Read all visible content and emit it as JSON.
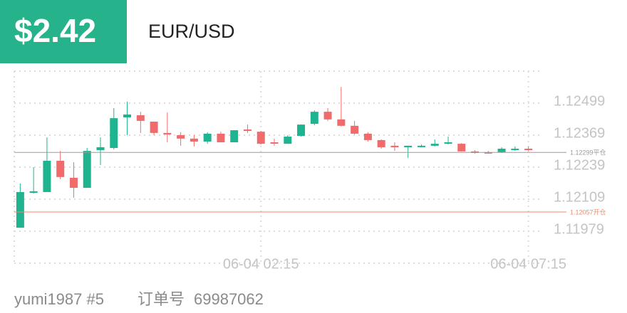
{
  "header": {
    "profit": "$2.42",
    "symbol": "EUR/USD"
  },
  "footer": {
    "user": "yumi1987 #5",
    "order_label": "订单号",
    "order_no": "69987062"
  },
  "chart_data": {
    "type": "candlestick",
    "categories": [
      null,
      null,
      null,
      null,
      null,
      null,
      null,
      null,
      null,
      null,
      null,
      null,
      null,
      null,
      null,
      null,
      null,
      null,
      "06-04 02:15",
      null,
      null,
      null,
      null,
      null,
      null,
      null,
      null,
      null,
      null,
      null,
      null,
      null,
      null,
      null,
      null,
      null,
      null,
      null,
      "06-04 07:15"
    ],
    "open": [
      1.11993,
      1.12135,
      1.12138,
      1.12265,
      1.12196,
      1.12155,
      1.12308,
      1.12317,
      1.12441,
      1.1245,
      1.12424,
      1.12378,
      1.12369,
      1.12355,
      1.12343,
      1.12375,
      1.1234,
      1.12392,
      1.12383,
      1.1234,
      1.12334,
      1.12366,
      1.12415,
      1.12464,
      1.12433,
      1.12407,
      1.12375,
      1.12349,
      1.12326,
      1.1232,
      1.12323,
      1.12326,
      1.12334,
      1.12334,
      1.12303,
      1.123,
      1.123,
      1.12311,
      1.12314
    ],
    "high": [
      1.12173,
      1.12239,
      1.1236,
      1.12305,
      1.12259,
      1.12317,
      1.1236,
      1.12479,
      1.12505,
      1.12464,
      1.12424,
      1.12461,
      1.12381,
      1.12369,
      1.12381,
      1.12383,
      1.12389,
      1.12412,
      1.12386,
      1.12355,
      1.12369,
      1.12412,
      1.1247,
      1.12479,
      1.12565,
      1.12427,
      1.12381,
      1.12352,
      1.1234,
      1.12326,
      1.12331,
      1.12352,
      1.12363,
      1.12337,
      1.12308,
      1.12305,
      1.1232,
      1.12323,
      1.12323
    ],
    "low": [
      1.11993,
      1.12132,
      1.12138,
      1.1219,
      1.12115,
      1.12155,
      1.12248,
      1.12311,
      1.12369,
      1.12378,
      1.12369,
      1.1234,
      1.12326,
      1.12323,
      1.12334,
      1.1234,
      1.1234,
      1.12378,
      1.12331,
      1.12326,
      1.12334,
      1.12363,
      1.12409,
      1.12427,
      1.12404,
      1.12372,
      1.12343,
      1.12314,
      1.12305,
      1.12277,
      1.1232,
      1.12323,
      1.12331,
      1.12303,
      1.12294,
      1.12294,
      1.12297,
      1.12305,
      1.12305
    ],
    "close": [
      1.12138,
      1.12141,
      1.12265,
      1.12199,
      1.12155,
      1.12305,
      1.1232,
      1.12438,
      1.12453,
      1.12427,
      1.12378,
      1.12372,
      1.12355,
      1.12343,
      1.12375,
      1.1234,
      1.12389,
      1.12386,
      1.12334,
      1.12337,
      1.12363,
      1.12412,
      1.12464,
      1.12433,
      1.12407,
      1.12375,
      1.12349,
      1.1232,
      1.1232,
      1.12326,
      1.12326,
      1.12334,
      1.1234,
      1.12303,
      1.12297,
      1.12297,
      1.12314,
      1.12314,
      1.12311
    ],
    "up_color": "#1fb38f",
    "down_color": "#f06b6b",
    "ylim": [
      1.11849,
      1.12629
    ],
    "yticks": [
      1.12499,
      1.12369,
      1.12239,
      1.12109,
      1.11979
    ],
    "grid": true,
    "position_lines": [
      {
        "value": 1.12299,
        "label": "1.12299平仓",
        "color": "#9a9a9a"
      },
      {
        "value": 1.12057,
        "label": "1.12057开仓",
        "color": "#f28a6a"
      }
    ]
  }
}
